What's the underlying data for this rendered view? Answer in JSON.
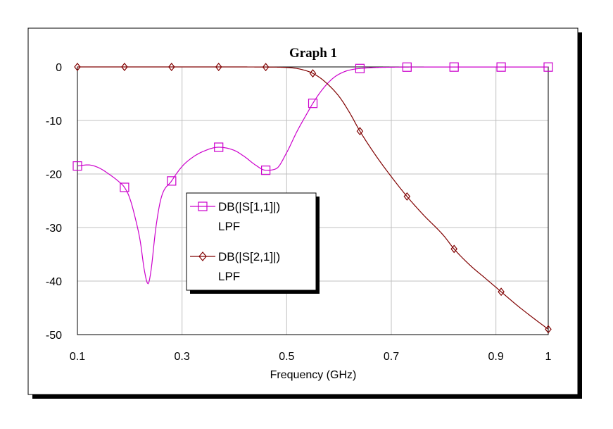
{
  "chart_data": {
    "type": "line",
    "title": "Graph 1",
    "xlabel": "Frequency (GHz)",
    "ylabel": "",
    "xlim": [
      0.1,
      1.0
    ],
    "ylim": [
      -50,
      0
    ],
    "x_ticks": [
      0.1,
      0.3,
      0.5,
      0.7,
      0.9,
      1.0
    ],
    "x_tick_labels": [
      "0.1",
      "0.3",
      "0.5",
      "0.7",
      "0.9",
      "1"
    ],
    "y_ticks": [
      0,
      -10,
      -20,
      -30,
      -40,
      -50
    ],
    "y_tick_labels": [
      "0",
      "-10",
      "-20",
      "-30",
      "-40",
      "-50"
    ],
    "grid": true,
    "legend_placement": "center-left",
    "series": [
      {
        "name": "DB(|S[1,1]|)",
        "legend_sub": "LPF",
        "color": "#cc00cc",
        "marker": "square",
        "x": [
          0.1,
          0.12,
          0.14,
          0.16,
          0.18,
          0.19,
          0.2,
          0.21,
          0.22,
          0.228,
          0.235,
          0.24,
          0.25,
          0.26,
          0.28,
          0.3,
          0.32,
          0.34,
          0.37,
          0.4,
          0.42,
          0.44,
          0.46,
          0.48,
          0.5,
          0.52,
          0.54,
          0.55,
          0.57,
          0.59,
          0.61,
          0.63,
          0.64,
          0.66,
          0.68,
          0.7,
          0.73,
          0.8,
          0.82,
          0.9,
          0.91,
          1.0
        ],
        "y": [
          -18.5,
          -18.3,
          -18.8,
          -20.0,
          -21.5,
          -22.5,
          -24.5,
          -28.0,
          -32.5,
          -38.0,
          -40.5,
          -38.5,
          -30.0,
          -24.5,
          -21.3,
          -18.6,
          -16.9,
          -15.8,
          -15.0,
          -15.6,
          -16.8,
          -18.3,
          -19.3,
          -19.0,
          -16.0,
          -12.0,
          -8.5,
          -6.8,
          -4.0,
          -2.0,
          -0.9,
          -0.4,
          -0.3,
          -0.15,
          -0.08,
          -0.05,
          -0.03,
          -0.02,
          -0.02,
          -0.02,
          -0.02,
          -0.02
        ],
        "marker_x": [
          0.1,
          0.19,
          0.28,
          0.37,
          0.46,
          0.55,
          0.64,
          0.73,
          0.82,
          0.91,
          1.0
        ]
      },
      {
        "name": "DB(|S[2,1]|)",
        "legend_sub": "LPF",
        "color": "#800000",
        "marker": "diamond",
        "x": [
          0.1,
          0.2,
          0.3,
          0.4,
          0.45,
          0.5,
          0.52,
          0.54,
          0.55,
          0.57,
          0.6,
          0.62,
          0.64,
          0.67,
          0.7,
          0.73,
          0.76,
          0.8,
          0.82,
          0.85,
          0.88,
          0.91,
          0.94,
          0.97,
          1.0
        ],
        "y": [
          0,
          0,
          0,
          0,
          -0.02,
          -0.1,
          -0.3,
          -0.8,
          -1.2,
          -2.5,
          -5.5,
          -8.5,
          -12.0,
          -16.5,
          -20.5,
          -24.2,
          -27.5,
          -31.5,
          -34.0,
          -37.0,
          -39.5,
          -42.0,
          -44.5,
          -46.8,
          -49.0
        ],
        "marker_x": [
          0.1,
          0.19,
          0.28,
          0.37,
          0.46,
          0.55,
          0.64,
          0.73,
          0.82,
          0.91,
          1.0
        ]
      }
    ]
  }
}
